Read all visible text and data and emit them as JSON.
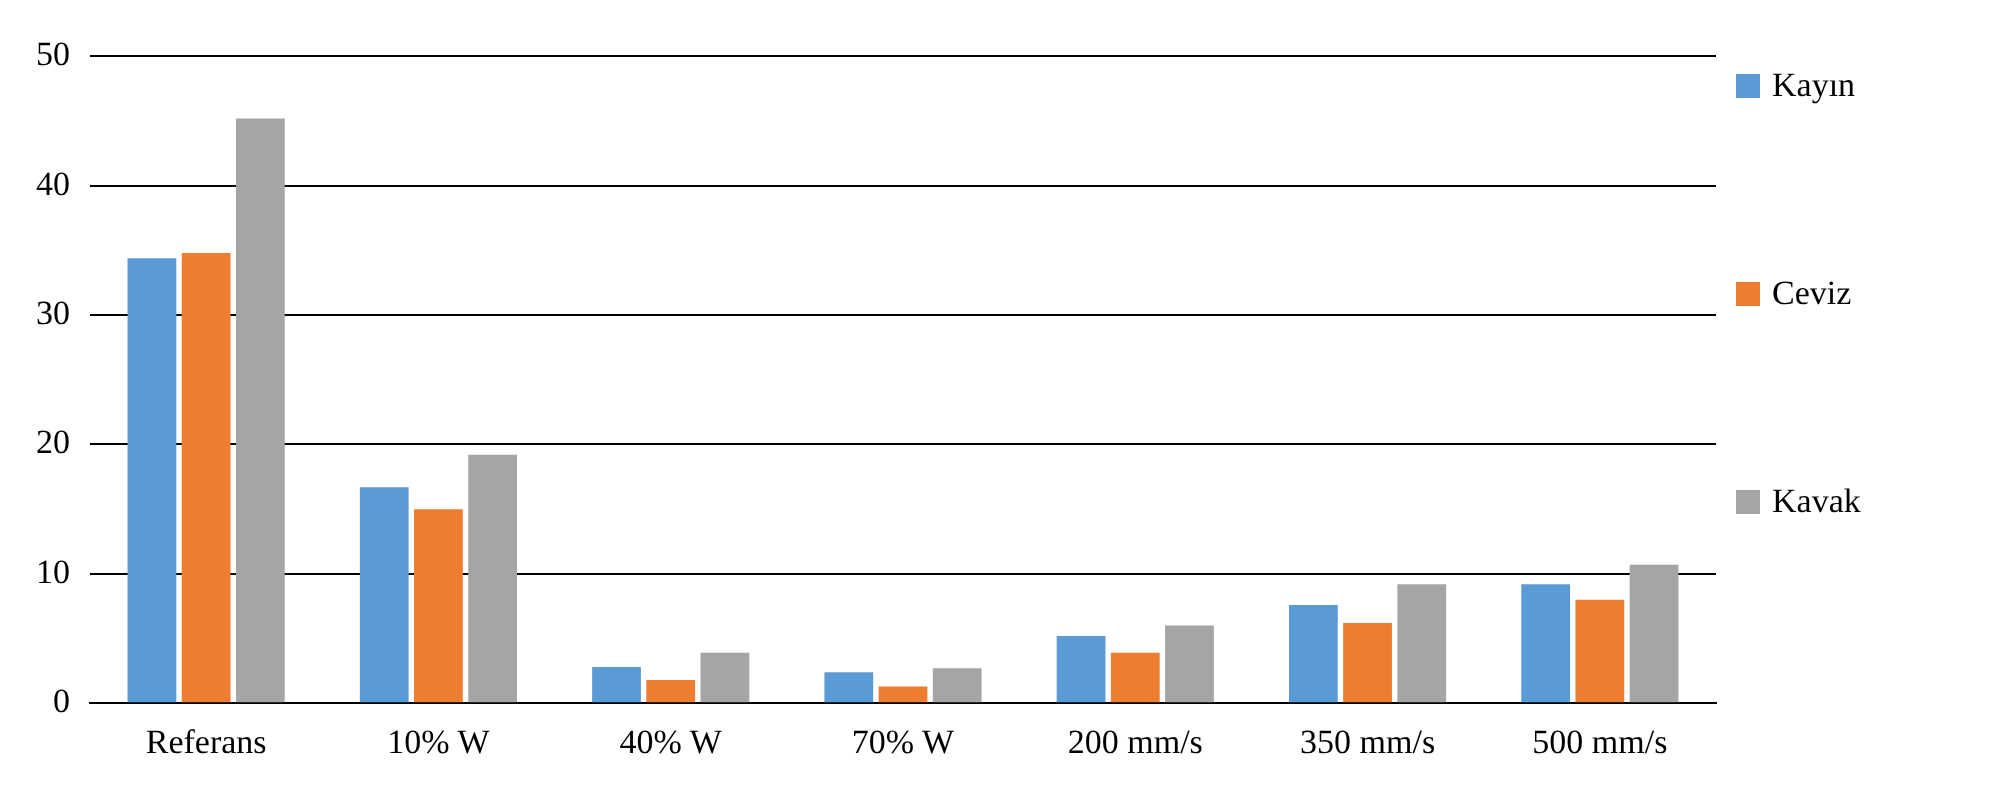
{
  "chart_data": {
    "type": "bar",
    "categories": [
      "Referans",
      "10% W",
      "40% W",
      "70% W",
      "200 mm/s",
      "350 mm/s",
      "500 mm/s"
    ],
    "series": [
      {
        "name": "Kayın",
        "color": "#5b9bd5",
        "values": [
          34.4,
          16.7,
          2.8,
          2.4,
          5.2,
          7.6,
          9.2
        ]
      },
      {
        "name": "Ceviz",
        "color": "#ed7d31",
        "values": [
          34.8,
          15.0,
          1.8,
          1.3,
          3.9,
          6.2,
          8.0
        ]
      },
      {
        "name": "Kavak",
        "color": "#a5a5a5",
        "values": [
          45.2,
          19.2,
          3.9,
          2.7,
          6.0,
          9.2,
          10.7
        ]
      }
    ],
    "ylim": [
      0,
      50
    ],
    "yticks": [
      0,
      10,
      20,
      30,
      40,
      50
    ],
    "grid": "y",
    "legend": "right"
  }
}
